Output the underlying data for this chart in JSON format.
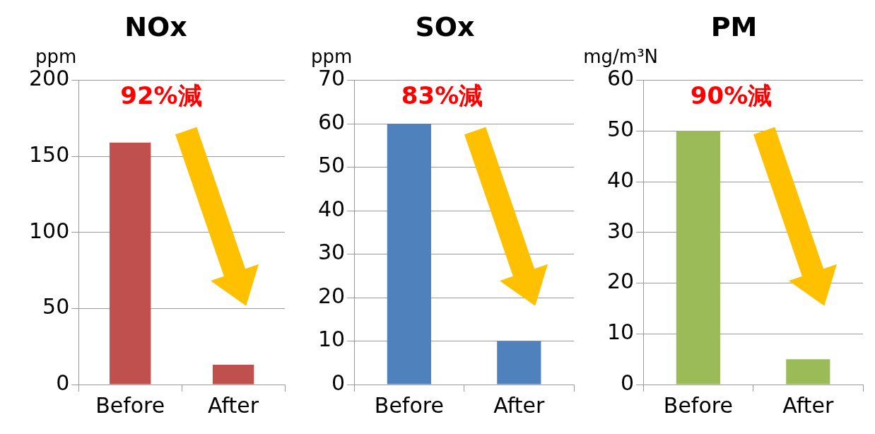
{
  "chart_data": [
    {
      "type": "bar",
      "title": "NOx",
      "ylabel": "ppm",
      "categories": [
        "Before",
        "After"
      ],
      "values": [
        159,
        13
      ],
      "color": "#c0504d",
      "ylim": [
        0,
        200
      ],
      "yticks": [
        0,
        50,
        100,
        150,
        200
      ],
      "grid": "y",
      "annotations": [
        "92%減"
      ]
    },
    {
      "type": "bar",
      "title": "SOx",
      "ylabel": "ppm",
      "categories": [
        "Before",
        "After"
      ],
      "values": [
        60,
        10
      ],
      "color": "#4f81bd",
      "ylim": [
        0,
        70
      ],
      "yticks": [
        0,
        10,
        20,
        30,
        40,
        50,
        60,
        70
      ],
      "grid": "y",
      "annotations": [
        "83%減"
      ]
    },
    {
      "type": "bar",
      "title": "PM",
      "ylabel": "mg/m³N",
      "categories": [
        "Before",
        "After"
      ],
      "values": [
        50,
        5
      ],
      "color": "#9bbb59",
      "ylim": [
        0,
        60
      ],
      "yticks": [
        0,
        10,
        20,
        30,
        40,
        50,
        60
      ],
      "grid": "y",
      "annotations": [
        "90%減"
      ]
    }
  ]
}
